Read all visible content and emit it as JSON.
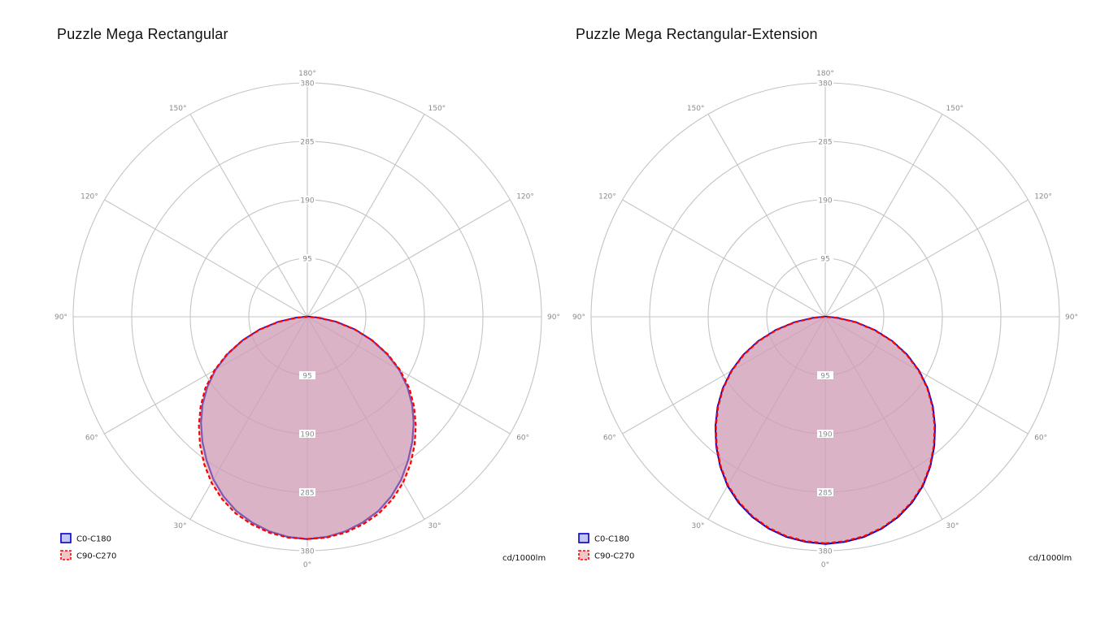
{
  "chart_data": [
    {
      "type": "polar",
      "title": "Puzzle Mega Rectangular",
      "unit_label": "cd/1000lm",
      "r_ticks": [
        95,
        190,
        285,
        380
      ],
      "r_max": 380,
      "angle_labels": [
        "0°",
        "30°",
        "60°",
        "90°",
        "120°",
        "150°",
        "180°"
      ],
      "legend_position": "bottom-left",
      "series": [
        {
          "name": "C0-C180",
          "color": "#0000cc",
          "fill": "#9c9cf0",
          "dash": "solid",
          "angles": [
            0,
            5,
            10,
            15,
            20,
            25,
            30,
            35,
            40,
            45,
            50,
            55,
            60,
            65,
            70,
            75,
            80,
            85,
            90
          ],
          "values": [
            361,
            359,
            354,
            346,
            336,
            322,
            305,
            285,
            265,
            244,
            222,
            198,
            172,
            142,
            111,
            80,
            48,
            18,
            2
          ]
        },
        {
          "name": "C90-C270",
          "color": "#ff0000",
          "fill": "#e8a0a0",
          "dash": "dashed",
          "angles": [
            0,
            5,
            10,
            15,
            20,
            25,
            30,
            35,
            40,
            45,
            50,
            55,
            60,
            65,
            70,
            75,
            80,
            85,
            90
          ],
          "values": [
            361,
            360,
            356,
            349,
            340,
            327,
            311,
            292,
            271,
            249,
            226,
            202,
            174,
            144,
            112,
            80,
            48,
            18,
            2
          ]
        }
      ]
    },
    {
      "type": "polar",
      "title": "Puzzle Mega Rectangular-Extension",
      "unit_label": "cd/1000lm",
      "r_ticks": [
        95,
        190,
        285,
        380
      ],
      "r_max": 380,
      "angle_labels": [
        "0°",
        "30°",
        "60°",
        "90°",
        "120°",
        "150°",
        "180°"
      ],
      "legend_position": "bottom-left",
      "series": [
        {
          "name": "C0-C180",
          "color": "#0000cc",
          "fill": "#9c9cf0",
          "dash": "solid",
          "angles": [
            0,
            5,
            10,
            15,
            20,
            25,
            30,
            35,
            40,
            45,
            50,
            55,
            60,
            65,
            70,
            75,
            80,
            85,
            90
          ],
          "values": [
            369,
            367,
            363,
            356,
            346,
            333,
            317,
            297,
            275,
            252,
            228,
            203,
            176,
            147,
            116,
            83,
            50,
            19,
            2
          ]
        },
        {
          "name": "C90-C270",
          "color": "#ff0000",
          "fill": "#e8a0a0",
          "dash": "dashed",
          "angles": [
            0,
            5,
            10,
            15,
            20,
            25,
            30,
            35,
            40,
            45,
            50,
            55,
            60,
            65,
            70,
            75,
            80,
            85,
            90
          ],
          "values": [
            368,
            366,
            362,
            355,
            345,
            332,
            316,
            296,
            274,
            251,
            227,
            202,
            175,
            146,
            115,
            82,
            49,
            18,
            2
          ]
        }
      ]
    }
  ]
}
